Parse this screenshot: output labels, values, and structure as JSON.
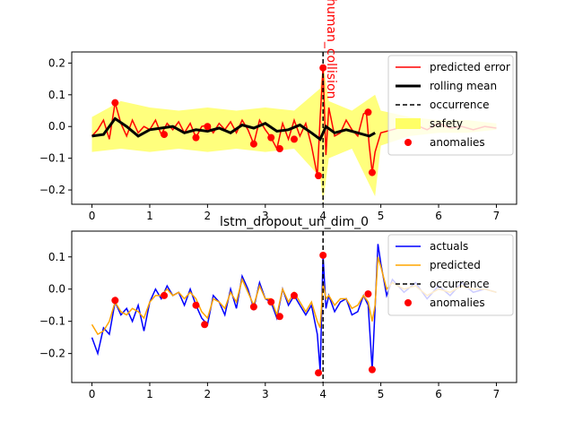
{
  "chart_data": [
    {
      "type": "line",
      "xlim": [
        -0.35,
        7.35
      ],
      "ylim": [
        -0.245,
        0.235
      ],
      "xticks": [
        0,
        1,
        2,
        3,
        4,
        5,
        6,
        7
      ],
      "yticks": [
        -0.2,
        -0.1,
        0.0,
        0.1,
        0.2
      ],
      "ytick_labels": [
        "−0.2",
        "−0.1",
        "0.0",
        "0.1",
        "0.2"
      ],
      "grid": false,
      "legend_position": "upper-right",
      "event_x": 4.0,
      "event_label": "human_collision",
      "colors": {
        "error": "#ff0000",
        "rolling": "#000000",
        "safety": "#ffff66",
        "anomaly": "#ff0000",
        "event_label": "#ff0000"
      },
      "legend": [
        "predicted error",
        "rolling mean",
        "occurrence",
        "safety",
        "anomalies"
      ],
      "series": [
        {
          "name": "predicted error",
          "x": [
            0,
            0.1,
            0.2,
            0.3,
            0.4,
            0.5,
            0.6,
            0.7,
            0.8,
            0.9,
            1.0,
            1.1,
            1.2,
            1.3,
            1.4,
            1.5,
            1.6,
            1.7,
            1.8,
            1.9,
            2.0,
            2.1,
            2.2,
            2.3,
            2.4,
            2.5,
            2.6,
            2.7,
            2.8,
            2.9,
            3.0,
            3.1,
            3.2,
            3.3,
            3.4,
            3.5,
            3.6,
            3.7,
            3.8,
            3.9,
            3.95,
            4.0,
            4.05,
            4.1,
            4.2,
            4.3,
            4.4,
            4.5,
            4.6,
            4.7,
            4.75,
            4.8,
            4.85,
            4.9,
            5.0,
            5.2,
            5.4,
            5.6,
            5.8,
            6.0,
            6.2,
            6.4,
            6.6,
            6.8,
            7.0
          ],
          "y": [
            -0.03,
            -0.01,
            0.02,
            -0.04,
            0.075,
            0.01,
            -0.03,
            0.02,
            -0.02,
            0.0,
            -0.01,
            0.02,
            -0.025,
            0.01,
            -0.01,
            0.015,
            -0.02,
            0.01,
            -0.035,
            0.0,
            0.005,
            -0.02,
            0.01,
            -0.01,
            0.015,
            -0.02,
            0.02,
            -0.01,
            -0.055,
            0.02,
            -0.01,
            -0.035,
            -0.07,
            0.01,
            -0.04,
            0.02,
            -0.03,
            0.01,
            -0.06,
            -0.155,
            0.03,
            0.185,
            -0.09,
            0.06,
            -0.03,
            -0.02,
            0.02,
            -0.01,
            -0.03,
            0.04,
            0.045,
            -0.06,
            -0.145,
            -0.08,
            -0.02,
            -0.01,
            0.0,
            0.005,
            -0.01,
            0.01,
            -0.005,
            0.0,
            -0.01,
            0.0,
            -0.005
          ]
        },
        {
          "name": "rolling mean",
          "x": [
            0,
            0.2,
            0.4,
            0.6,
            0.8,
            1.0,
            1.2,
            1.4,
            1.6,
            1.8,
            2.0,
            2.2,
            2.4,
            2.6,
            2.8,
            3.0,
            3.2,
            3.4,
            3.6,
            3.8,
            3.95,
            4.05,
            4.2,
            4.4,
            4.6,
            4.8,
            4.9
          ],
          "y": [
            -0.03,
            -0.025,
            0.025,
            0.0,
            -0.03,
            -0.01,
            -0.005,
            0.0,
            -0.02,
            -0.01,
            -0.015,
            -0.005,
            -0.02,
            0.005,
            -0.005,
            0.01,
            -0.015,
            -0.01,
            0.005,
            -0.02,
            -0.04,
            0.0,
            -0.02,
            -0.01,
            -0.02,
            -0.03,
            -0.02
          ]
        },
        {
          "name": "safety",
          "x": [
            0,
            0.5,
            1.0,
            1.5,
            2.0,
            2.5,
            3.0,
            3.5,
            3.95,
            4.0,
            4.1,
            4.5,
            4.9,
            5.0,
            5.5,
            6.0,
            6.5,
            7.0
          ],
          "upper": [
            0.03,
            0.08,
            0.06,
            0.05,
            0.06,
            0.05,
            0.06,
            0.05,
            0.12,
            0.2,
            0.08,
            0.05,
            0.1,
            0.05,
            0.03,
            0.02,
            0.02,
            0.01
          ],
          "lower": [
            -0.08,
            -0.07,
            -0.08,
            -0.07,
            -0.08,
            -0.07,
            -0.08,
            -0.07,
            -0.16,
            -0.24,
            -0.1,
            -0.07,
            -0.22,
            -0.06,
            -0.03,
            -0.02,
            -0.02,
            -0.01
          ]
        },
        {
          "name": "anomalies",
          "x": [
            0.4,
            1.25,
            1.8,
            2.0,
            2.8,
            3.1,
            3.25,
            3.5,
            3.92,
            4.0,
            4.78,
            4.85
          ],
          "y": [
            0.075,
            -0.025,
            -0.035,
            0.0,
            -0.055,
            -0.035,
            -0.07,
            -0.04,
            -0.155,
            0.185,
            0.045,
            -0.145
          ]
        }
      ]
    },
    {
      "type": "line",
      "title": "lstm_dropout_un_dim_0",
      "xlim": [
        -0.35,
        7.35
      ],
      "ylim": [
        -0.29,
        0.18
      ],
      "xticks": [
        0,
        1,
        2,
        3,
        4,
        5,
        6,
        7
      ],
      "yticks": [
        -0.2,
        -0.1,
        0.0,
        0.1
      ],
      "ytick_labels": [
        "−0.2",
        "−0.1",
        "0.0",
        "0.1"
      ],
      "grid": false,
      "legend_position": "upper-right",
      "event_x": 4.0,
      "colors": {
        "actuals": "#0000ff",
        "predicted": "#ffa500",
        "anomaly": "#ff0000"
      },
      "legend": [
        "actuals",
        "predicted",
        "occurrence",
        "anomalies"
      ],
      "series": [
        {
          "name": "actuals",
          "x": [
            0,
            0.1,
            0.2,
            0.3,
            0.4,
            0.5,
            0.6,
            0.7,
            0.8,
            0.9,
            1.0,
            1.1,
            1.2,
            1.3,
            1.4,
            1.5,
            1.6,
            1.7,
            1.8,
            1.9,
            2.0,
            2.1,
            2.2,
            2.3,
            2.4,
            2.5,
            2.6,
            2.7,
            2.8,
            2.9,
            3.0,
            3.1,
            3.2,
            3.3,
            3.4,
            3.5,
            3.6,
            3.7,
            3.8,
            3.9,
            3.95,
            4.0,
            4.05,
            4.1,
            4.2,
            4.3,
            4.4,
            4.5,
            4.6,
            4.7,
            4.78,
            4.85,
            4.9,
            4.95,
            5.0,
            5.1,
            5.2,
            5.4,
            5.6,
            5.8,
            6.0,
            6.2,
            6.4,
            6.6,
            6.8,
            7.0
          ],
          "y": [
            -0.15,
            -0.2,
            -0.12,
            -0.14,
            -0.04,
            -0.08,
            -0.06,
            -0.1,
            -0.05,
            -0.13,
            -0.04,
            0.0,
            -0.03,
            0.01,
            -0.02,
            -0.01,
            -0.05,
            0.0,
            -0.05,
            -0.09,
            -0.11,
            -0.02,
            -0.04,
            -0.08,
            0.0,
            -0.06,
            0.04,
            0.0,
            -0.06,
            0.02,
            -0.03,
            -0.04,
            -0.09,
            0.0,
            -0.05,
            -0.02,
            -0.05,
            -0.08,
            -0.05,
            -0.14,
            -0.255,
            0.105,
            -0.06,
            -0.02,
            -0.07,
            -0.04,
            -0.03,
            -0.08,
            -0.07,
            -0.02,
            -0.05,
            -0.25,
            -0.06,
            0.14,
            0.08,
            -0.02,
            0.03,
            -0.01,
            0.02,
            -0.03,
            0.01,
            -0.02,
            0.02,
            -0.01,
            0.0,
            -0.01
          ]
        },
        {
          "name": "predicted",
          "x": [
            0,
            0.1,
            0.2,
            0.3,
            0.4,
            0.5,
            0.6,
            0.7,
            0.8,
            0.9,
            1.0,
            1.1,
            1.2,
            1.3,
            1.4,
            1.5,
            1.6,
            1.7,
            1.8,
            1.9,
            2.0,
            2.1,
            2.2,
            2.3,
            2.4,
            2.5,
            2.6,
            2.7,
            2.8,
            2.9,
            3.0,
            3.1,
            3.2,
            3.3,
            3.4,
            3.5,
            3.6,
            3.7,
            3.8,
            3.9,
            3.95,
            4.0,
            4.05,
            4.1,
            4.2,
            4.3,
            4.4,
            4.5,
            4.6,
            4.7,
            4.78,
            4.85,
            4.9,
            4.95,
            5.0,
            5.1,
            5.2,
            5.4,
            5.6,
            5.8,
            6.0,
            6.2,
            6.4,
            6.6,
            6.8,
            7.0
          ],
          "y": [
            -0.11,
            -0.14,
            -0.13,
            -0.1,
            -0.04,
            -0.07,
            -0.08,
            -0.06,
            -0.07,
            -0.09,
            -0.04,
            -0.02,
            -0.02,
            0.0,
            -0.02,
            -0.01,
            -0.03,
            -0.01,
            -0.03,
            -0.07,
            -0.09,
            -0.03,
            -0.04,
            -0.06,
            -0.01,
            -0.04,
            0.03,
            -0.01,
            -0.05,
            0.01,
            -0.03,
            -0.03,
            -0.08,
            0.0,
            -0.04,
            -0.01,
            -0.04,
            -0.07,
            -0.04,
            -0.1,
            -0.12,
            0.02,
            -0.03,
            -0.02,
            -0.05,
            -0.03,
            -0.03,
            -0.06,
            -0.05,
            -0.02,
            -0.04,
            -0.1,
            -0.05,
            0.1,
            0.07,
            0.0,
            0.02,
            0.0,
            0.01,
            -0.02,
            0.0,
            -0.01,
            0.01,
            0.0,
            0.0,
            -0.01
          ]
        },
        {
          "name": "anomalies",
          "x": [
            0.4,
            1.25,
            1.8,
            1.95,
            2.8,
            3.1,
            3.25,
            3.5,
            3.92,
            4.0,
            4.78,
            4.85
          ],
          "y": [
            -0.035,
            -0.02,
            -0.05,
            -0.11,
            -0.055,
            -0.04,
            -0.085,
            -0.02,
            -0.26,
            0.105,
            -0.015,
            -0.25
          ]
        }
      ]
    }
  ]
}
